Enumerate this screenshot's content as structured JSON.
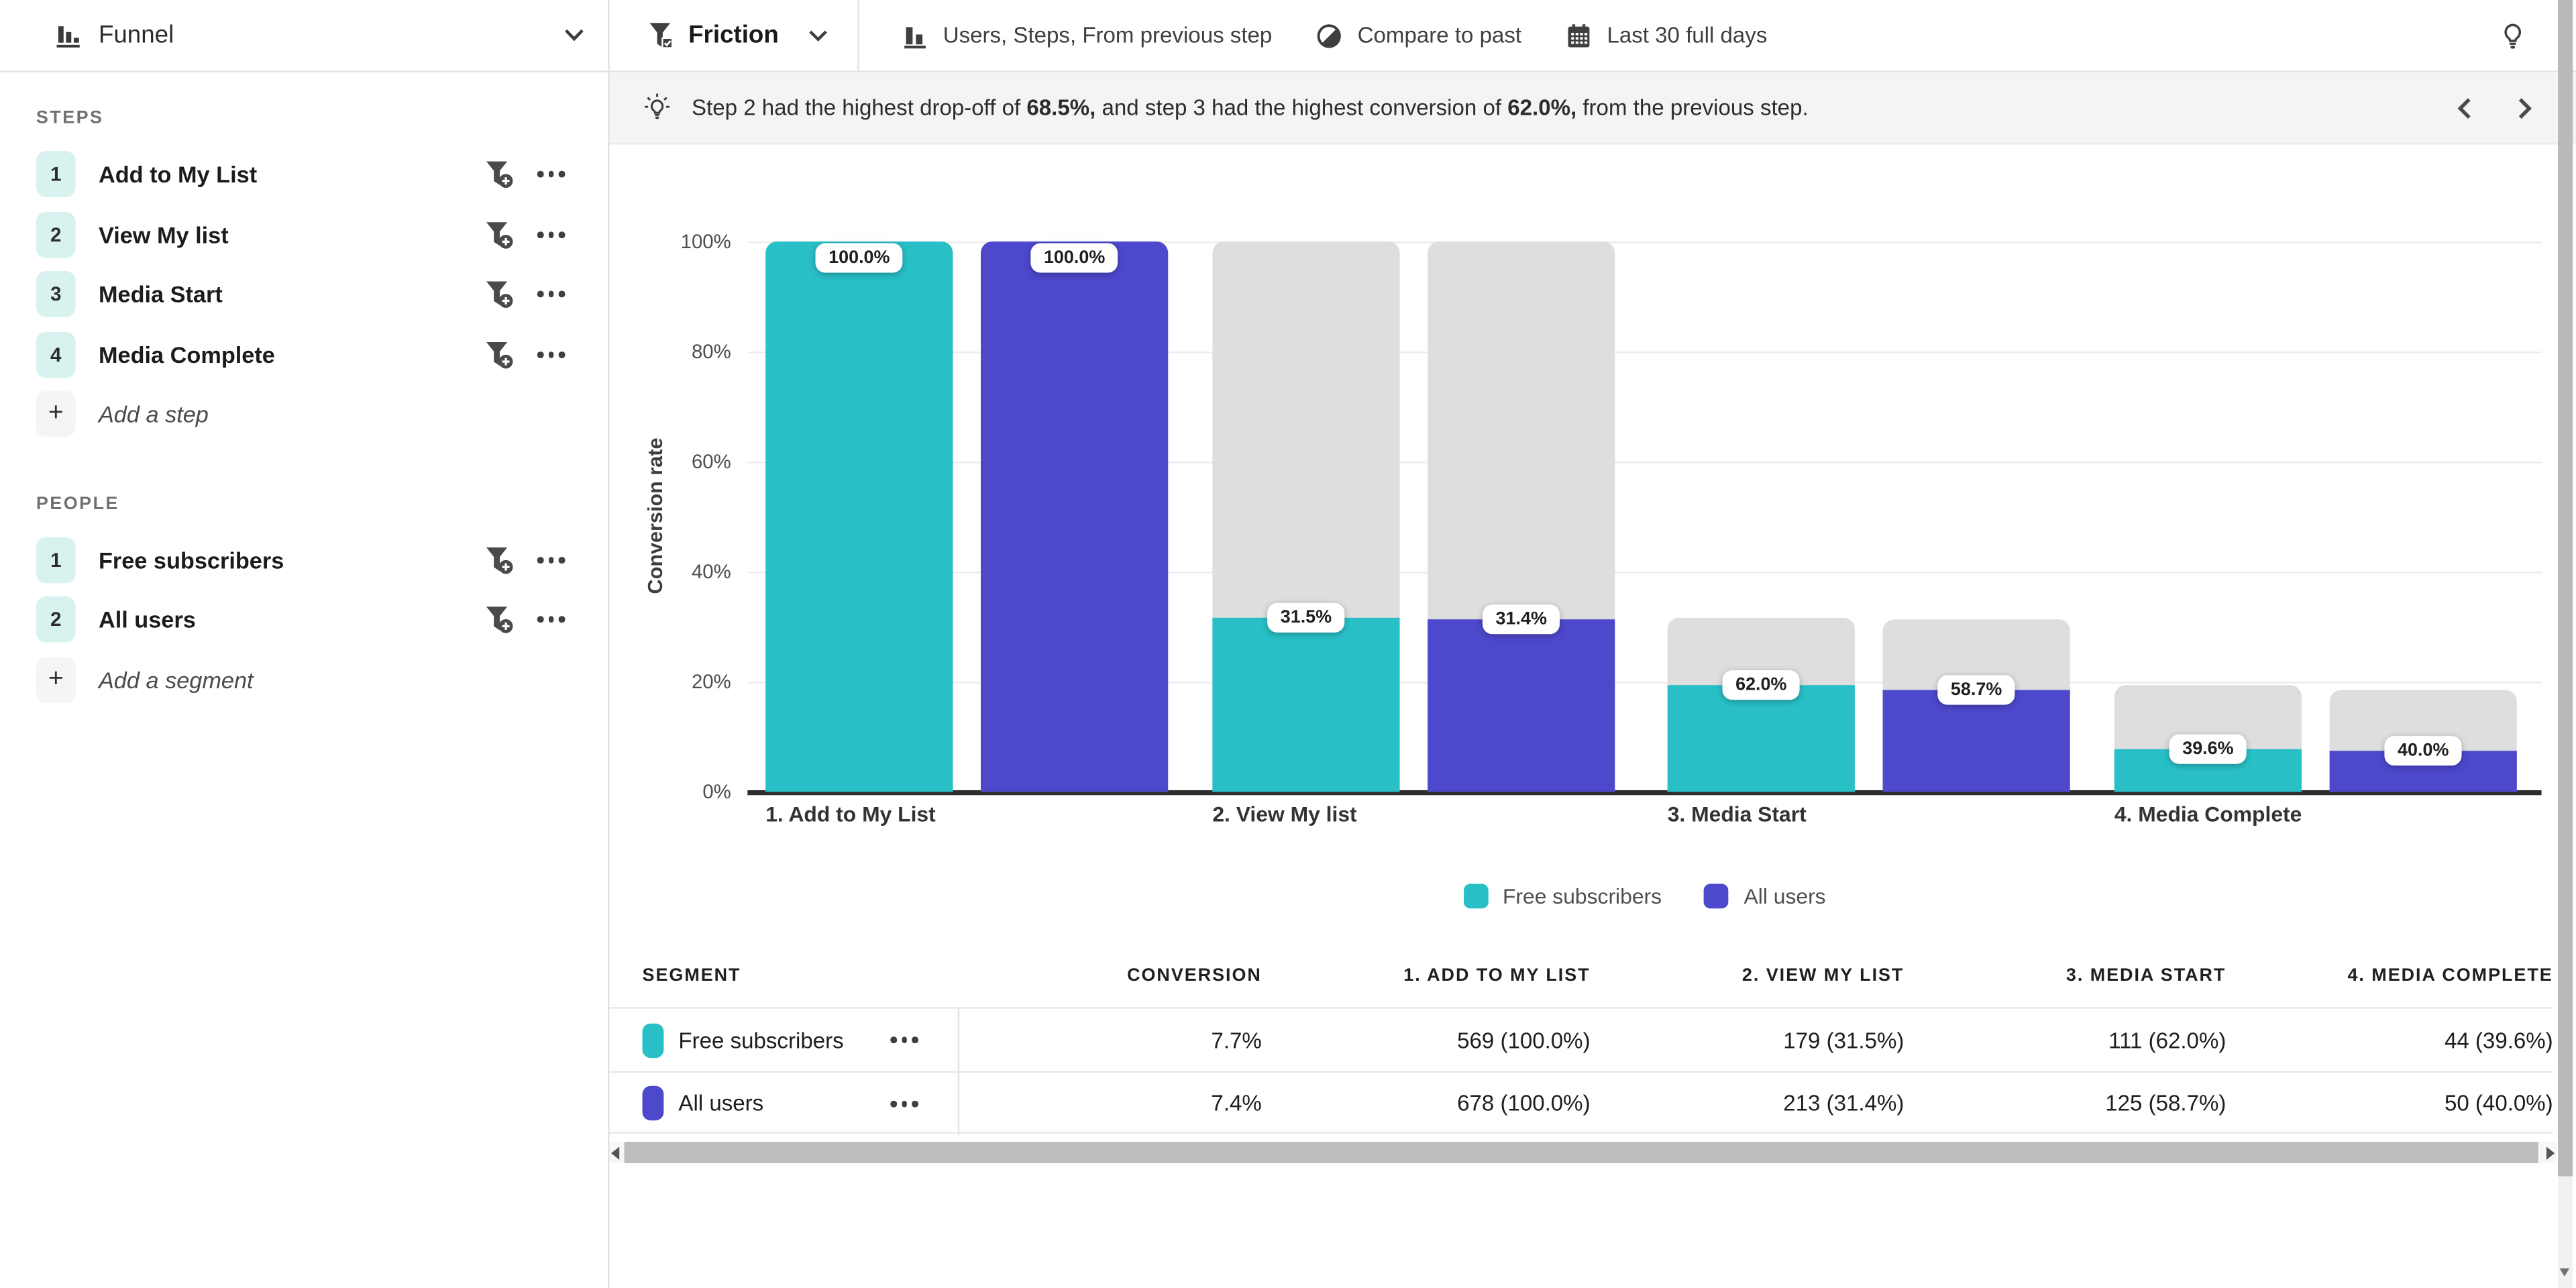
{
  "sidebar": {
    "title": "Funnel",
    "steps_section_label": "STEPS",
    "steps": [
      {
        "num": "1",
        "label": "Add to My List"
      },
      {
        "num": "2",
        "label": "View My list"
      },
      {
        "num": "3",
        "label": "Media Start"
      },
      {
        "num": "4",
        "label": "Media Complete"
      }
    ],
    "add_step_label": "Add a step",
    "people_section_label": "PEOPLE",
    "people": [
      {
        "num": "1",
        "label": "Free subscribers"
      },
      {
        "num": "2",
        "label": "All users"
      }
    ],
    "add_segment_label": "Add a segment"
  },
  "toolbar": {
    "metric_label": "Friction",
    "items": [
      {
        "icon": "bar-chart-icon",
        "label": "Users, Steps, From previous step"
      },
      {
        "icon": "compare-icon",
        "label": "Compare to past"
      },
      {
        "icon": "calendar-icon",
        "label": "Last 30 full days"
      }
    ]
  },
  "insight": {
    "segments": [
      {
        "text": "Step 2 had the highest drop-off of ",
        "bold": false
      },
      {
        "text": "68.5%,",
        "bold": true
      },
      {
        "text": " and step 3 had the highest conversion of ",
        "bold": false
      },
      {
        "text": "62.0%,",
        "bold": true
      },
      {
        "text": " from the previous step.",
        "bold": false
      }
    ]
  },
  "chart_data": {
    "type": "bar",
    "ylabel": "Conversion rate",
    "y_ticks": [
      "100%",
      "80%",
      "60%",
      "40%",
      "20%",
      "0%"
    ],
    "ylim": [
      0,
      100
    ],
    "grid": true,
    "legend_position": "bottom-center",
    "categories": [
      "1. Add to My List",
      "2. View My list",
      "3. Media Start",
      "4. Media Complete"
    ],
    "series": [
      {
        "name": "Free subscribers",
        "color": "#28bfc6",
        "labels": [
          "100.0%",
          "31.5%",
          "62.0%",
          "39.6%"
        ],
        "overall_pct": [
          100,
          31.5,
          19.5,
          7.7
        ],
        "backdrop_pct": [
          100,
          100,
          31.5,
          19.5
        ]
      },
      {
        "name": "All users",
        "color": "#4d48cc",
        "labels": [
          "100.0%",
          "31.4%",
          "58.7%",
          "40.0%"
        ],
        "overall_pct": [
          100,
          31.4,
          18.4,
          7.4
        ],
        "backdrop_pct": [
          100,
          100,
          31.4,
          18.4
        ]
      }
    ],
    "backdrop_color": "#dedede"
  },
  "table": {
    "headers": [
      "SEGMENT",
      "CONVERSION",
      "1. ADD TO MY LIST",
      "2. VIEW MY LIST",
      "3. MEDIA START",
      "4. MEDIA COMPLETE"
    ],
    "rows": [
      {
        "segment": "Free subscribers",
        "color": "#28bfc6",
        "values": [
          "7.7%",
          "569 (100.0%)",
          "179 (31.5%)",
          "111 (62.0%)",
          "44 (39.6%)"
        ]
      },
      {
        "segment": "All users",
        "color": "#4d48cc",
        "values": [
          "7.4%",
          "678 (100.0%)",
          "213 (31.4%)",
          "125 (58.7%)",
          "50 (40.0%)"
        ]
      }
    ]
  },
  "colors": {
    "teal": "#28bfc6",
    "purple": "#4d48cc",
    "badge_mint": "#d7f2ef",
    "backdrop_gray": "#dedede",
    "insight_bg": "#f4f4f4"
  }
}
